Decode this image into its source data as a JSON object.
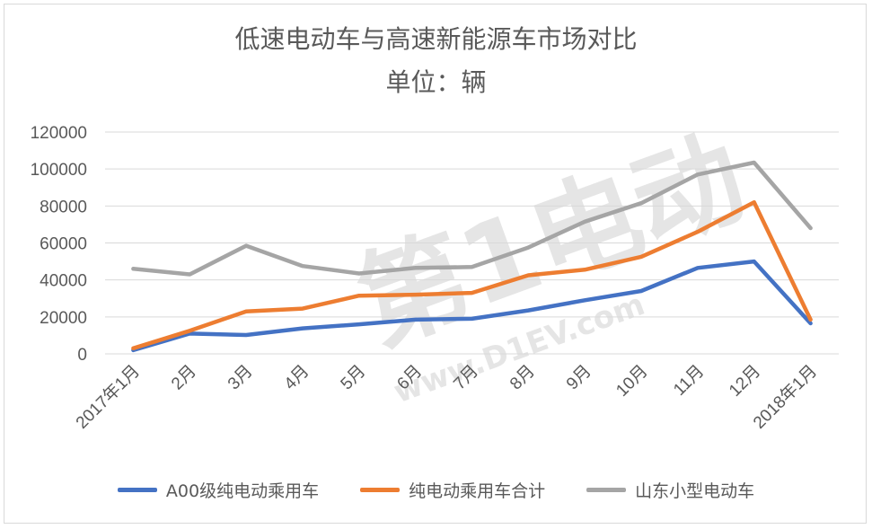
{
  "chart_data": {
    "type": "line",
    "title": "低速电动车与高速新能源车市场对比",
    "subtitle": "单位：辆",
    "categories": [
      "2017年1月",
      "2月",
      "3月",
      "4月",
      "5月",
      "6月",
      "7月",
      "8月",
      "9月",
      "10月",
      "11月",
      "12月",
      "2018年1月"
    ],
    "yticks": [
      "0",
      "20000",
      "40000",
      "60000",
      "80000",
      "100000",
      "120000"
    ],
    "ylim": [
      0,
      120000
    ],
    "grid": true,
    "legend_position": "bottom",
    "series": [
      {
        "name": "A00级纯电动乘用车",
        "color": "#4472c4",
        "values": [
          2000,
          11000,
          10200,
          13800,
          16000,
          18500,
          19000,
          23500,
          29000,
          34000,
          46500,
          50000,
          16500
        ]
      },
      {
        "name": "纯电动乘用车合计",
        "color": "#ed7d31",
        "values": [
          3000,
          12500,
          23000,
          24500,
          31500,
          32000,
          33000,
          42500,
          45500,
          52500,
          66000,
          82000,
          18500
        ]
      },
      {
        "name": "山东小型电动车",
        "color": "#a5a5a5",
        "values": [
          46000,
          43000,
          58500,
          47500,
          43500,
          46500,
          47000,
          57500,
          71500,
          81500,
          97000,
          103500,
          68000
        ]
      }
    ]
  },
  "watermark": {
    "brand": "第1电动",
    "url": "www.D1EV.com"
  }
}
